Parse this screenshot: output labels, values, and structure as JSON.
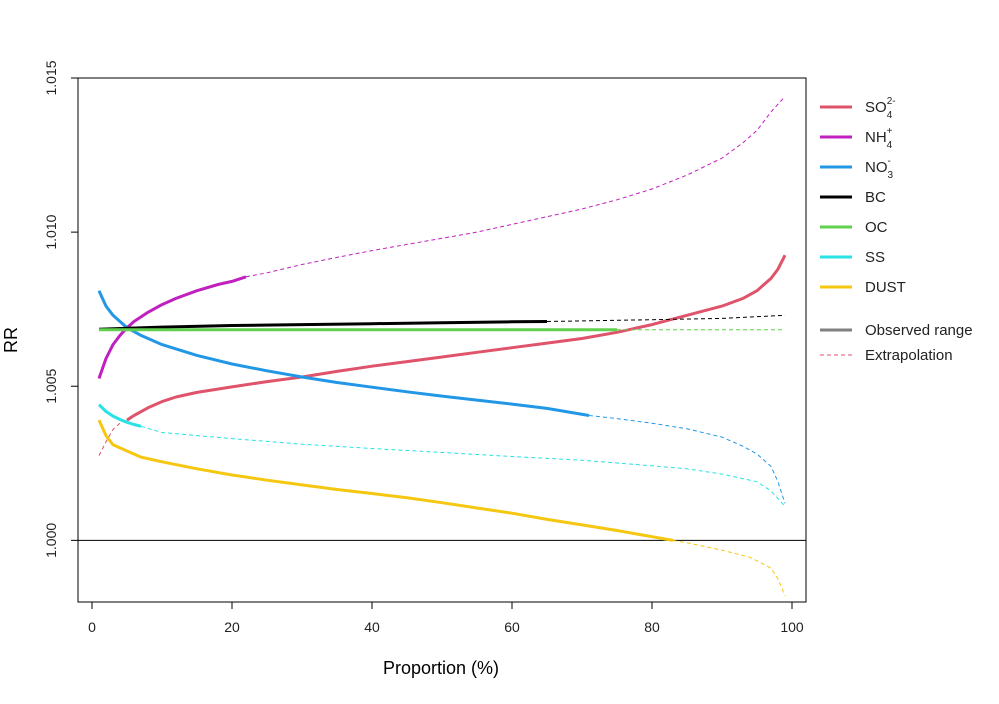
{
  "chart_data": {
    "type": "line",
    "title": "",
    "xlabel": "Proportion (%)",
    "ylabel": "RR",
    "xlim": [
      -2,
      102
    ],
    "ylim": [
      0.998,
      1.015
    ],
    "x_ticks": [
      0,
      20,
      40,
      60,
      80,
      100
    ],
    "y_ticks": [
      1.0,
      1.005,
      1.01,
      1.015
    ],
    "x_tick_labels": [
      "0",
      "20",
      "40",
      "60",
      "80",
      "100"
    ],
    "y_tick_labels": [
      "1.000",
      "1.005",
      "1.010",
      "1.015"
    ],
    "reference_line": 1.0,
    "grid": false,
    "legend_position": "right",
    "series": [
      {
        "name": "SO",
        "name_sub": "4",
        "name_sup": "2-",
        "color": "#DF536B",
        "observed_range": [
          5,
          99
        ],
        "points": [
          [
            1,
            1.00275
          ],
          [
            2,
            1.0032
          ],
          [
            3,
            1.0036
          ],
          [
            4,
            1.0038
          ],
          [
            5,
            1.0039
          ],
          [
            6,
            1.00405
          ],
          [
            8,
            1.0043
          ],
          [
            10,
            1.0045
          ],
          [
            12,
            1.00465
          ],
          [
            15,
            1.0048
          ],
          [
            20,
            1.00498
          ],
          [
            25,
            1.00515
          ],
          [
            30,
            1.0053
          ],
          [
            35,
            1.00548
          ],
          [
            40,
            1.00565
          ],
          [
            45,
            1.0058
          ],
          [
            50,
            1.00595
          ],
          [
            55,
            1.0061
          ],
          [
            60,
            1.00625
          ],
          [
            65,
            1.0064
          ],
          [
            70,
            1.00655
          ],
          [
            75,
            1.00675
          ],
          [
            80,
            1.007
          ],
          [
            85,
            1.0073
          ],
          [
            90,
            1.0076
          ],
          [
            93,
            1.00785
          ],
          [
            95,
            1.0081
          ],
          [
            97,
            1.0085
          ],
          [
            98,
            1.0088
          ],
          [
            99,
            1.00925
          ]
        ]
      },
      {
        "name": "NH",
        "name_sub": "4",
        "name_sup": "+",
        "color": "#C020C0",
        "observed_range": [
          1,
          22
        ],
        "points": [
          [
            1,
            1.00525
          ],
          [
            2,
            1.0059
          ],
          [
            3,
            1.00635
          ],
          [
            4,
            1.00665
          ],
          [
            5,
            1.0069
          ],
          [
            6,
            1.0071
          ],
          [
            8,
            1.0074
          ],
          [
            10,
            1.00765
          ],
          [
            12,
            1.00785
          ],
          [
            15,
            1.0081
          ],
          [
            18,
            1.0083
          ],
          [
            20,
            1.0084
          ],
          [
            22,
            1.00855
          ],
          [
            25,
            1.00868
          ],
          [
            30,
            1.00895
          ],
          [
            35,
            1.00918
          ],
          [
            40,
            1.0094
          ],
          [
            45,
            1.0096
          ],
          [
            50,
            1.0098
          ],
          [
            55,
            1.01
          ],
          [
            60,
            1.01025
          ],
          [
            65,
            1.0105
          ],
          [
            70,
            1.01075
          ],
          [
            75,
            1.01105
          ],
          [
            80,
            1.0114
          ],
          [
            85,
            1.01185
          ],
          [
            90,
            1.0124
          ],
          [
            93,
            1.0129
          ],
          [
            95,
            1.0133
          ],
          [
            97,
            1.0139
          ],
          [
            99,
            1.0144
          ]
        ]
      },
      {
        "name": "NO",
        "name_sub": "3",
        "name_sup": "-",
        "color": "#2297E6",
        "observed_range": [
          1,
          71
        ],
        "points": [
          [
            1,
            1.0081
          ],
          [
            2,
            1.0076
          ],
          [
            3,
            1.0073
          ],
          [
            4,
            1.0071
          ],
          [
            5,
            1.0069
          ],
          [
            7,
            1.00665
          ],
          [
            10,
            1.00635
          ],
          [
            15,
            1.006
          ],
          [
            20,
            1.00572
          ],
          [
            25,
            1.0055
          ],
          [
            30,
            1.0053
          ],
          [
            35,
            1.00512
          ],
          [
            40,
            1.00497
          ],
          [
            45,
            1.00482
          ],
          [
            50,
            1.00468
          ],
          [
            55,
            1.00455
          ],
          [
            60,
            1.00442
          ],
          [
            65,
            1.00428
          ],
          [
            71,
            1.00405
          ],
          [
            75,
            1.00395
          ],
          [
            80,
            1.0038
          ],
          [
            85,
            1.00362
          ],
          [
            90,
            1.00335
          ],
          [
            93,
            1.00305
          ],
          [
            95,
            1.0028
          ],
          [
            97,
            1.0024
          ],
          [
            98,
            1.0019
          ],
          [
            99,
            1.0012
          ]
        ]
      },
      {
        "name": "BC",
        "name_sub": "",
        "name_sup": "",
        "color": "#000000",
        "observed_range": [
          1,
          65
        ],
        "points": [
          [
            1,
            1.00685
          ],
          [
            10,
            1.00692
          ],
          [
            20,
            1.00697
          ],
          [
            30,
            1.007
          ],
          [
            40,
            1.00703
          ],
          [
            50,
            1.00706
          ],
          [
            60,
            1.00709
          ],
          [
            65,
            1.0071
          ],
          [
            70,
            1.00712
          ],
          [
            80,
            1.00716
          ],
          [
            90,
            1.0072
          ],
          [
            99,
            1.0073
          ]
        ]
      },
      {
        "name": "OC",
        "name_sub": "",
        "name_sup": "",
        "color": "#61D04F",
        "observed_range": [
          1,
          75
        ],
        "points": [
          [
            1,
            1.00683
          ],
          [
            20,
            1.00683
          ],
          [
            40,
            1.00683
          ],
          [
            60,
            1.00683
          ],
          [
            75,
            1.00683
          ],
          [
            90,
            1.00683
          ],
          [
            99,
            1.00683
          ]
        ]
      },
      {
        "name": "SS",
        "name_sub": "",
        "name_sup": "",
        "color": "#28E2E5",
        "observed_range": [
          1,
          7
        ],
        "points": [
          [
            1,
            1.0044
          ],
          [
            2,
            1.00418
          ],
          [
            3,
            1.00403
          ],
          [
            4,
            1.00392
          ],
          [
            5,
            1.00383
          ],
          [
            6,
            1.00376
          ],
          [
            7,
            1.0037
          ],
          [
            10,
            1.0035
          ],
          [
            15,
            1.0034
          ],
          [
            20,
            1.0033
          ],
          [
            30,
            1.00312
          ],
          [
            40,
            1.00298
          ],
          [
            50,
            1.00285
          ],
          [
            60,
            1.00272
          ],
          [
            70,
            1.0026
          ],
          [
            80,
            1.00242
          ],
          [
            85,
            1.00232
          ],
          [
            90,
            1.00215
          ],
          [
            93,
            1.002
          ],
          [
            95,
            1.0019
          ],
          [
            97,
            1.0016
          ],
          [
            99,
            1.0011
          ]
        ]
      },
      {
        "name": "DUST",
        "name_sub": "",
        "name_sup": "",
        "color": "#F5C710",
        "observed_range": [
          1,
          83
        ],
        "points": [
          [
            1,
            1.0039
          ],
          [
            2,
            1.0034
          ],
          [
            3,
            1.0031
          ],
          [
            5,
            1.0029
          ],
          [
            7,
            1.0027
          ],
          [
            10,
            1.00255
          ],
          [
            15,
            1.00232
          ],
          [
            20,
            1.00212
          ],
          [
            25,
            1.00195
          ],
          [
            30,
            1.0018
          ],
          [
            35,
            1.00165
          ],
          [
            40,
            1.00152
          ],
          [
            45,
            1.00138
          ],
          [
            50,
            1.00122
          ],
          [
            55,
            1.00105
          ],
          [
            60,
            1.00088
          ],
          [
            65,
            1.00068
          ],
          [
            70,
            1.0005
          ],
          [
            75,
            1.00032
          ],
          [
            80,
            1.00012
          ],
          [
            83,
            1.0
          ],
          [
            85,
            0.99992
          ],
          [
            90,
            0.99968
          ],
          [
            94,
            0.99945
          ],
          [
            97,
            0.9991
          ],
          [
            98,
            0.99875
          ],
          [
            99,
            0.9982
          ]
        ]
      }
    ],
    "legend_extra": [
      {
        "label": "Observed range",
        "style": "solid",
        "color": "#808080"
      },
      {
        "label": "Extrapolation",
        "style": "dashed",
        "color": "#DF536B"
      }
    ]
  }
}
